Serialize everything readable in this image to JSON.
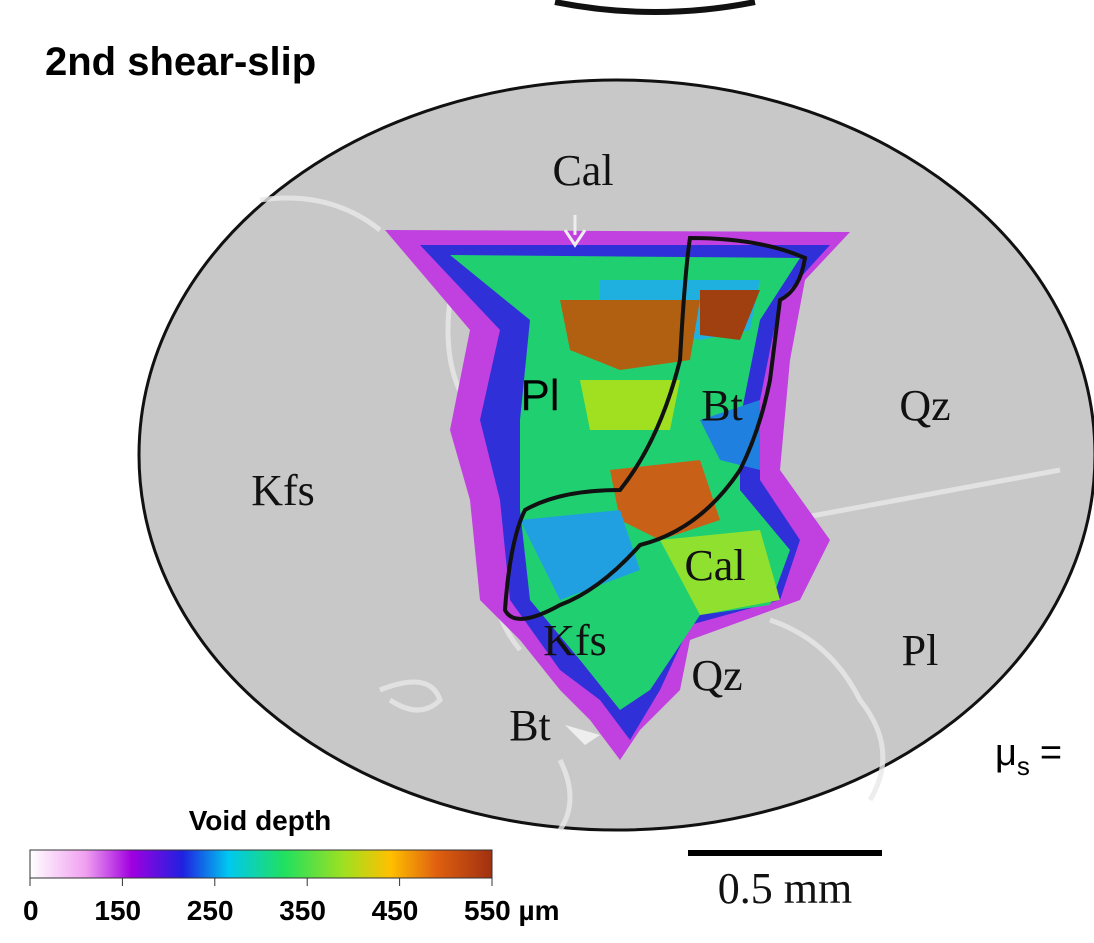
{
  "title": "2nd shear-slip",
  "labels": [
    "Cal",
    "Pl",
    "Bt",
    "Qz",
    "Kfs",
    "Cal",
    "Kfs",
    "Qz",
    "Pl",
    "Bt"
  ],
  "colorbar": {
    "title": "Void depth",
    "tick_labels": [
      "0",
      "150",
      "250",
      "350",
      "450",
      "550 µm"
    ]
  },
  "scale_bar": "0.5 mm",
  "friction": {
    "symbol": "μ",
    "subscript": "s",
    "sign": "="
  }
}
